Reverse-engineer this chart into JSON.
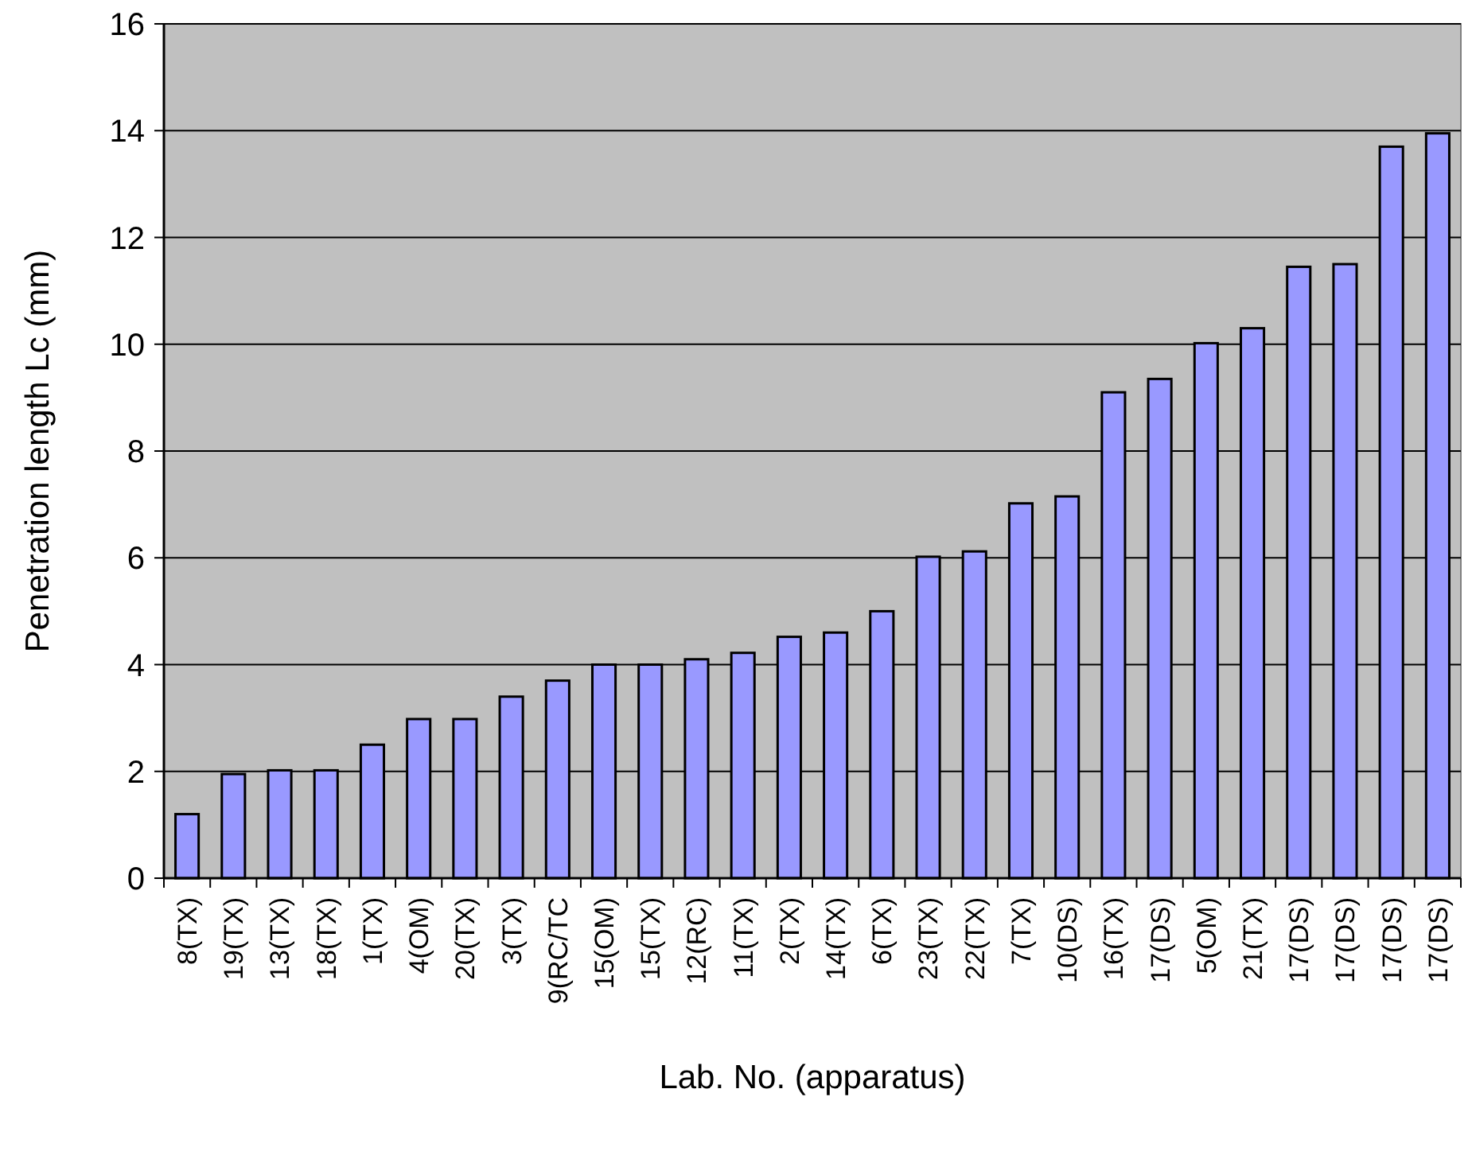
{
  "chart_data": {
    "type": "bar",
    "xlabel": "Lab. No. (apparatus)",
    "ylabel": "Penetration length Lc (mm)",
    "categories": [
      "8(TX)",
      "19(TX)",
      "13(TX)",
      "18(TX)",
      "1(TX)",
      "4(OM)",
      "20(TX)",
      "3(TX)",
      "9(RC/TC",
      "15(OM)",
      "15(TX)",
      "12(RC)",
      "11(TX)",
      "2(TX)",
      "14(TX)",
      "6(TX)",
      "23(TX)",
      "22(TX)",
      "7(TX)",
      "10(DS)",
      "16(TX)",
      "17(DS)",
      "5(OM)",
      "21(TX)",
      "17(DS)",
      "17(DS)",
      "17(DS)",
      "17(DS)"
    ],
    "values": [
      1.2,
      1.95,
      2.02,
      2.02,
      2.5,
      2.98,
      2.98,
      3.4,
      3.7,
      4.0,
      4.0,
      4.1,
      4.22,
      4.52,
      4.6,
      5.0,
      6.02,
      6.12,
      7.02,
      7.15,
      9.1,
      9.35,
      10.02,
      10.3,
      11.45,
      11.5,
      13.7,
      13.95
    ],
    "color": "#9999ff",
    "ylim": [
      0,
      16
    ],
    "yticks": [
      0,
      2,
      4,
      6,
      8,
      10,
      12,
      14,
      16
    ],
    "grid": "y"
  }
}
